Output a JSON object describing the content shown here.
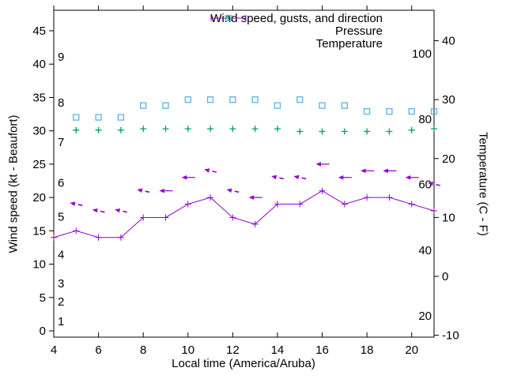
{
  "chart_data": {
    "type": "line",
    "xlabel": "Local time (America/Aruba)",
    "ylabel_left": "Wind speed (kt - Beaufort)",
    "ylabel_right": "Temperature (C - F)",
    "grid": false,
    "border": true,
    "x_range": [
      4,
      21
    ],
    "y_left_range_kt": [
      -1,
      48
    ],
    "y_right_range_c": [
      -10.3,
      45.2
    ],
    "x_ticks": [
      4,
      6,
      8,
      10,
      12,
      14,
      16,
      18,
      20
    ],
    "y_left_ticks_kt": [
      0,
      5,
      10,
      15,
      20,
      25,
      30,
      35,
      40,
      45
    ],
    "y_right_ticks_c": [
      -10,
      0,
      10,
      20,
      30,
      40
    ],
    "beaufort_labels": [
      {
        "label": "1",
        "kt": 1.4
      },
      {
        "label": "2",
        "kt": 4.4
      },
      {
        "label": "3",
        "kt": 7.1
      },
      {
        "label": "4",
        "kt": 11.4
      },
      {
        "label": "5",
        "kt": 17.1
      },
      {
        "label": "6",
        "kt": 22.2
      },
      {
        "label": "7",
        "kt": 28.3
      },
      {
        "label": "8",
        "kt": 34.2
      },
      {
        "label": "9",
        "kt": 41.1
      }
    ],
    "fahrenheit_labels": [
      {
        "label": "20",
        "c": -6.7
      },
      {
        "label": "40",
        "c": 4.4
      },
      {
        "label": "60",
        "c": 15.6
      },
      {
        "label": "80",
        "c": 26.7
      },
      {
        "label": "100",
        "c": 37.8
      }
    ],
    "legend": {
      "position": "top-right",
      "entries": [
        {
          "label": "Wind speed, gusts, and direction",
          "color": "#9400D3",
          "marker": "errorbar-line-plus"
        },
        {
          "label": "Pressure",
          "color": "#009E73",
          "marker": "plus"
        },
        {
          "label": "Temperature",
          "color": "#56B4E9",
          "marker": "open-square"
        }
      ]
    },
    "series": [
      {
        "name": "Wind speed",
        "color": "#9400D3",
        "style": "line-plus",
        "axis": "left",
        "unit": "kt",
        "x": [
          4,
          5,
          6,
          7,
          8,
          9,
          10,
          11,
          12,
          13,
          14,
          15,
          16,
          17,
          18,
          19,
          20,
          21
        ],
        "values": [
          14,
          15,
          14,
          14,
          17,
          17,
          19,
          20,
          17,
          16,
          19,
          19,
          21,
          19,
          20,
          20,
          19,
          18
        ]
      },
      {
        "name": "Wind gusts and direction",
        "color": "#9400D3",
        "style": "direction-arrow",
        "axis": "left",
        "unit": "kt",
        "x": [
          5,
          6,
          7,
          8,
          9,
          10,
          11,
          12,
          13,
          14,
          15,
          16,
          17,
          18,
          19,
          20,
          21
        ],
        "values": [
          19,
          18,
          18,
          21,
          21,
          23,
          24,
          21,
          20,
          23,
          23,
          25,
          23,
          24,
          24,
          23,
          22
        ],
        "arrow_styles": [
          "tilted",
          "tilted",
          "tilted",
          "tilted",
          "straight",
          "straight",
          "tilted",
          "tilted",
          "straight",
          "tilted",
          "tilted",
          "straight",
          "straight",
          "straight",
          "straight",
          "straight",
          "tilted"
        ]
      },
      {
        "name": "Pressure",
        "color": "#009E73",
        "style": "plus",
        "axis": "left",
        "unit": "inHg",
        "x": [
          5,
          6,
          7,
          8,
          9,
          10,
          11,
          12,
          13,
          14,
          15,
          16,
          17,
          18,
          19,
          20,
          21
        ],
        "values": [
          30.1,
          30.1,
          30.1,
          30.3,
          30.3,
          30.3,
          30.3,
          30.3,
          30.3,
          30.3,
          29.9,
          29.9,
          29.9,
          29.9,
          29.9,
          30.1,
          30.3
        ]
      },
      {
        "name": "Temperature",
        "color": "#56B4E9",
        "style": "open-square",
        "axis": "right",
        "unit": "C",
        "x": [
          5,
          6,
          7,
          8,
          9,
          10,
          11,
          12,
          13,
          14,
          15,
          16,
          17,
          18,
          19,
          20,
          21
        ],
        "values": [
          27,
          27,
          27,
          29,
          29,
          30,
          30,
          30,
          30,
          29,
          30,
          29,
          29,
          28,
          28,
          28,
          28
        ]
      }
    ]
  }
}
